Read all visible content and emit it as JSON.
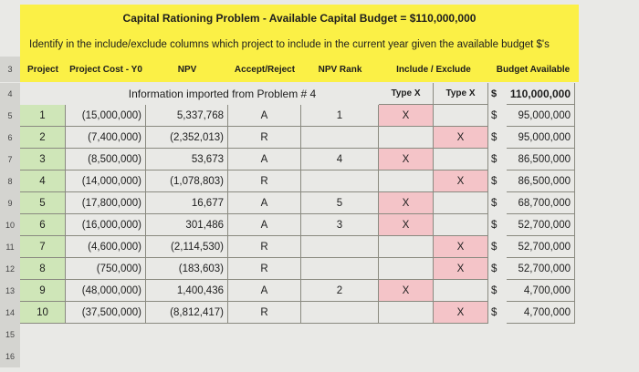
{
  "title": "Capital Rationing Problem - Available Capital Budget = $110,000,000",
  "instruction": "Identify in the include/exclude columns which project to include in the current year given the available budget $'s",
  "headers": [
    "Project",
    "Project Cost - Y0",
    "NPV",
    "Accept/Reject",
    "NPV Rank",
    "Include / Exclude",
    "Budget Available"
  ],
  "subheader": {
    "note": "Information imported from Problem # 4",
    "include": "Type X",
    "exclude": "Type X",
    "currency": "$",
    "budget": "110,000,000"
  },
  "row_numbers": [
    3,
    4,
    5,
    6,
    7,
    8,
    9,
    10,
    11,
    12,
    13,
    14,
    15,
    16
  ],
  "rows": [
    [
      1,
      "(15,000,000)",
      "5,337,768",
      "A",
      1,
      "X",
      null,
      "$",
      "95,000,000"
    ],
    [
      2,
      "(7,400,000)",
      "(2,352,013)",
      "R",
      null,
      null,
      "X",
      "$",
      "95,000,000"
    ],
    [
      3,
      "(8,500,000)",
      "53,673",
      "A",
      4,
      "X",
      null,
      "$",
      "86,500,000"
    ],
    [
      4,
      "(14,000,000)",
      "(1,078,803)",
      "R",
      null,
      null,
      "X",
      "$",
      "86,500,000"
    ],
    [
      5,
      "(17,800,000)",
      "16,677",
      "A",
      5,
      "X",
      null,
      "$",
      "68,700,000"
    ],
    [
      6,
      "(16,000,000)",
      "301,486",
      "A",
      3,
      "X",
      null,
      "$",
      "52,700,000"
    ],
    [
      7,
      "(4,600,000)",
      "(2,114,530)",
      "R",
      null,
      null,
      "X",
      "$",
      "52,700,000"
    ],
    [
      8,
      "(750,000)",
      "(183,603)",
      "R",
      null,
      null,
      "X",
      "$",
      "52,700,000"
    ],
    [
      9,
      "(48,000,000)",
      "1,400,436",
      "A",
      2,
      "X",
      null,
      "$",
      "4,700,000"
    ],
    [
      10,
      "(37,500,000)",
      "(8,812,417)",
      "R",
      null,
      null,
      "X",
      "$",
      "4,700,000"
    ]
  ]
}
